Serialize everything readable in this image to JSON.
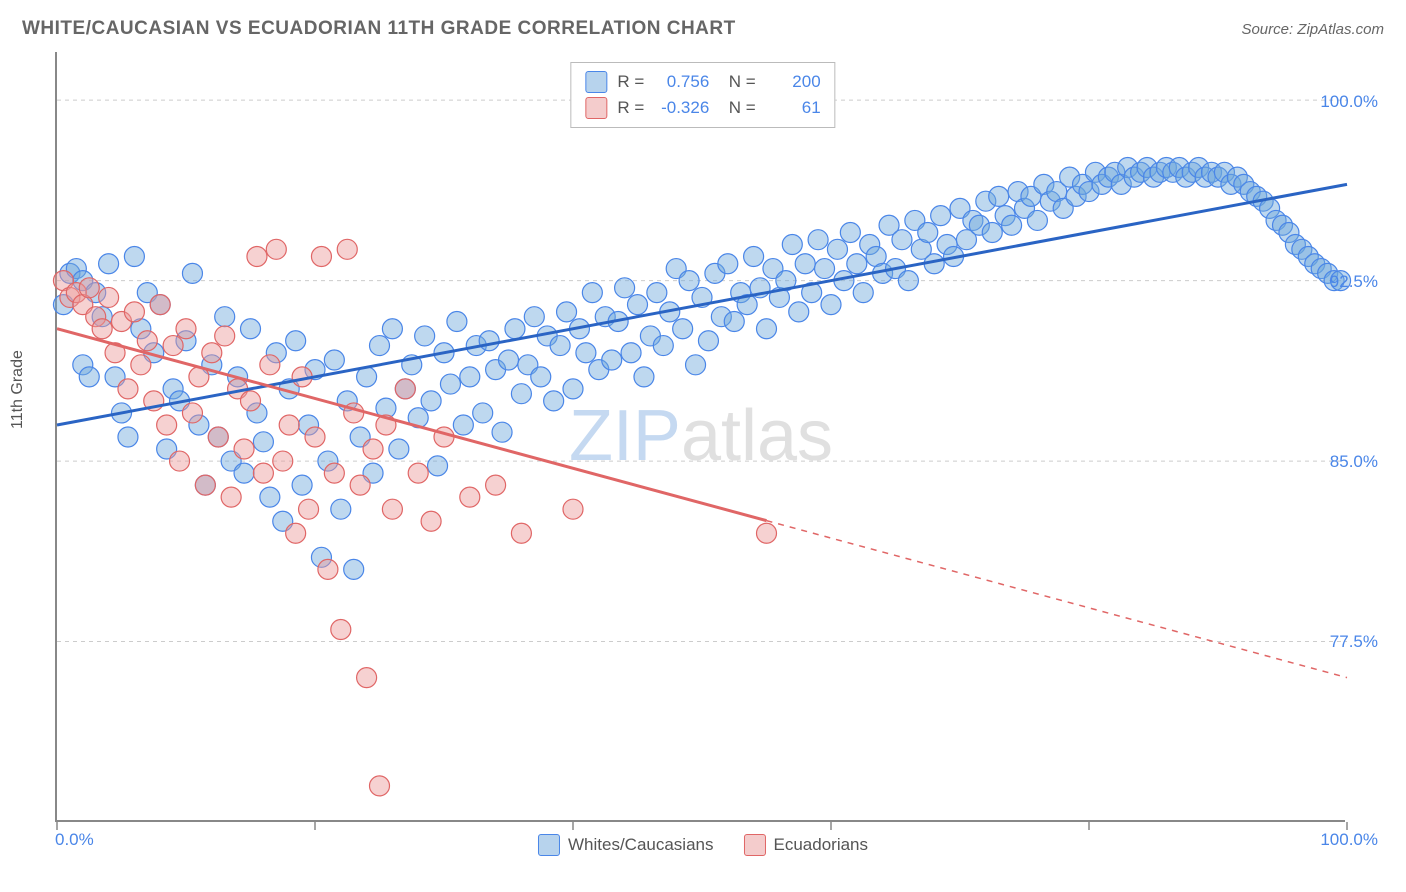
{
  "title": "WHITE/CAUCASIAN VS ECUADORIAN 11TH GRADE CORRELATION CHART",
  "source": "Source: ZipAtlas.com",
  "y_axis_label": "11th Grade",
  "chart": {
    "type": "scatter",
    "xlim": [
      0,
      100
    ],
    "ylim": [
      70,
      102
    ],
    "x_ticks_percent": [
      0,
      20,
      40,
      60,
      80,
      100
    ],
    "y_gridlines": [
      77.5,
      85.0,
      92.5,
      100.0
    ],
    "y_tick_labels": [
      "77.5%",
      "85.0%",
      "92.5%",
      "100.0%"
    ],
    "x_tick_labels": {
      "left": "0.0%",
      "right": "100.0%"
    },
    "background_color": "#ffffff",
    "grid_color": "#cccccc",
    "axis_color": "#888888",
    "label_color": "#555555",
    "value_color": "#4a86e8",
    "series": [
      {
        "name": "Whites/Caucasians",
        "marker_color": "#6fa8dc",
        "marker_fill": "rgba(111,168,220,0.45)",
        "marker_stroke": "#4a86e8",
        "marker_radius": 10,
        "line_color": "#2a64c4",
        "line_width": 3,
        "R": "0.756",
        "N": "200",
        "trend": {
          "x1": 0,
          "y1": 86.5,
          "x2": 100,
          "y2": 96.5
        },
        "points": [
          [
            0.5,
            91.5
          ],
          [
            1,
            92.8
          ],
          [
            1.5,
            93.0
          ],
          [
            2,
            92.5
          ],
          [
            2,
            89.0
          ],
          [
            2.5,
            88.5
          ],
          [
            3,
            92.0
          ],
          [
            3.5,
            91.0
          ],
          [
            4,
            93.2
          ],
          [
            4.5,
            88.5
          ],
          [
            5,
            87.0
          ],
          [
            5.5,
            86.0
          ],
          [
            6,
            93.5
          ],
          [
            6.5,
            90.5
          ],
          [
            7,
            92.0
          ],
          [
            7.5,
            89.5
          ],
          [
            8,
            91.5
          ],
          [
            8.5,
            85.5
          ],
          [
            9,
            88.0
          ],
          [
            9.5,
            87.5
          ],
          [
            10,
            90.0
          ],
          [
            10.5,
            92.8
          ],
          [
            11,
            86.5
          ],
          [
            11.5,
            84.0
          ],
          [
            12,
            89.0
          ],
          [
            12.5,
            86.0
          ],
          [
            13,
            91.0
          ],
          [
            13.5,
            85.0
          ],
          [
            14,
            88.5
          ],
          [
            14.5,
            84.5
          ],
          [
            15,
            90.5
          ],
          [
            15.5,
            87.0
          ],
          [
            16,
            85.8
          ],
          [
            16.5,
            83.5
          ],
          [
            17,
            89.5
          ],
          [
            17.5,
            82.5
          ],
          [
            18,
            88.0
          ],
          [
            18.5,
            90.0
          ],
          [
            19,
            84.0
          ],
          [
            19.5,
            86.5
          ],
          [
            20,
            88.8
          ],
          [
            20.5,
            81.0
          ],
          [
            21,
            85.0
          ],
          [
            21.5,
            89.2
          ],
          [
            22,
            83.0
          ],
          [
            22.5,
            87.5
          ],
          [
            23,
            80.5
          ],
          [
            23.5,
            86.0
          ],
          [
            24,
            88.5
          ],
          [
            24.5,
            84.5
          ],
          [
            25,
            89.8
          ],
          [
            25.5,
            87.2
          ],
          [
            26,
            90.5
          ],
          [
            26.5,
            85.5
          ],
          [
            27,
            88.0
          ],
          [
            27.5,
            89.0
          ],
          [
            28,
            86.8
          ],
          [
            28.5,
            90.2
          ],
          [
            29,
            87.5
          ],
          [
            29.5,
            84.8
          ],
          [
            30,
            89.5
          ],
          [
            30.5,
            88.2
          ],
          [
            31,
            90.8
          ],
          [
            31.5,
            86.5
          ],
          [
            32,
            88.5
          ],
          [
            32.5,
            89.8
          ],
          [
            33,
            87.0
          ],
          [
            33.5,
            90.0
          ],
          [
            34,
            88.8
          ],
          [
            34.5,
            86.2
          ],
          [
            35,
            89.2
          ],
          [
            35.5,
            90.5
          ],
          [
            36,
            87.8
          ],
          [
            36.5,
            89.0
          ],
          [
            37,
            91.0
          ],
          [
            37.5,
            88.5
          ],
          [
            38,
            90.2
          ],
          [
            38.5,
            87.5
          ],
          [
            39,
            89.8
          ],
          [
            39.5,
            91.2
          ],
          [
            40,
            88.0
          ],
          [
            40.5,
            90.5
          ],
          [
            41,
            89.5
          ],
          [
            41.5,
            92.0
          ],
          [
            42,
            88.8
          ],
          [
            42.5,
            91.0
          ],
          [
            43,
            89.2
          ],
          [
            43.5,
            90.8
          ],
          [
            44,
            92.2
          ],
          [
            44.5,
            89.5
          ],
          [
            45,
            91.5
          ],
          [
            45.5,
            88.5
          ],
          [
            46,
            90.2
          ],
          [
            46.5,
            92.0
          ],
          [
            47,
            89.8
          ],
          [
            47.5,
            91.2
          ],
          [
            48,
            93.0
          ],
          [
            48.5,
            90.5
          ],
          [
            49,
            92.5
          ],
          [
            49.5,
            89.0
          ],
          [
            50,
            91.8
          ],
          [
            50.5,
            90.0
          ],
          [
            51,
            92.8
          ],
          [
            51.5,
            91.0
          ],
          [
            52,
            93.2
          ],
          [
            52.5,
            90.8
          ],
          [
            53,
            92.0
          ],
          [
            53.5,
            91.5
          ],
          [
            54,
            93.5
          ],
          [
            54.5,
            92.2
          ],
          [
            55,
            90.5
          ],
          [
            55.5,
            93.0
          ],
          [
            56,
            91.8
          ],
          [
            56.5,
            92.5
          ],
          [
            57,
            94.0
          ],
          [
            57.5,
            91.2
          ],
          [
            58,
            93.2
          ],
          [
            58.5,
            92.0
          ],
          [
            59,
            94.2
          ],
          [
            59.5,
            93.0
          ],
          [
            60,
            91.5
          ],
          [
            60.5,
            93.8
          ],
          [
            61,
            92.5
          ],
          [
            61.5,
            94.5
          ],
          [
            62,
            93.2
          ],
          [
            62.5,
            92.0
          ],
          [
            63,
            94.0
          ],
          [
            63.5,
            93.5
          ],
          [
            64,
            92.8
          ],
          [
            64.5,
            94.8
          ],
          [
            65,
            93.0
          ],
          [
            65.5,
            94.2
          ],
          [
            66,
            92.5
          ],
          [
            66.5,
            95.0
          ],
          [
            67,
            93.8
          ],
          [
            67.5,
            94.5
          ],
          [
            68,
            93.2
          ],
          [
            68.5,
            95.2
          ],
          [
            69,
            94.0
          ],
          [
            69.5,
            93.5
          ],
          [
            70,
            95.5
          ],
          [
            70.5,
            94.2
          ],
          [
            71,
            95.0
          ],
          [
            71.5,
            94.8
          ],
          [
            72,
            95.8
          ],
          [
            72.5,
            94.5
          ],
          [
            73,
            96.0
          ],
          [
            73.5,
            95.2
          ],
          [
            74,
            94.8
          ],
          [
            74.5,
            96.2
          ],
          [
            75,
            95.5
          ],
          [
            75.5,
            96.0
          ],
          [
            76,
            95.0
          ],
          [
            76.5,
            96.5
          ],
          [
            77,
            95.8
          ],
          [
            77.5,
            96.2
          ],
          [
            78,
            95.5
          ],
          [
            78.5,
            96.8
          ],
          [
            79,
            96.0
          ],
          [
            79.5,
            96.5
          ],
          [
            80,
            96.2
          ],
          [
            80.5,
            97.0
          ],
          [
            81,
            96.5
          ],
          [
            81.5,
            96.8
          ],
          [
            82,
            97.0
          ],
          [
            82.5,
            96.5
          ],
          [
            83,
            97.2
          ],
          [
            83.5,
            96.8
          ],
          [
            84,
            97.0
          ],
          [
            84.5,
            97.2
          ],
          [
            85,
            96.8
          ],
          [
            85.5,
            97.0
          ],
          [
            86,
            97.2
          ],
          [
            86.5,
            97.0
          ],
          [
            87,
            97.2
          ],
          [
            87.5,
            96.8
          ],
          [
            88,
            97.0
          ],
          [
            88.5,
            97.2
          ],
          [
            89,
            96.8
          ],
          [
            89.5,
            97.0
          ],
          [
            90,
            96.8
          ],
          [
            90.5,
            97.0
          ],
          [
            91,
            96.5
          ],
          [
            91.5,
            96.8
          ],
          [
            92,
            96.5
          ],
          [
            92.5,
            96.2
          ],
          [
            93,
            96.0
          ],
          [
            93.5,
            95.8
          ],
          [
            94,
            95.5
          ],
          [
            94.5,
            95.0
          ],
          [
            95,
            94.8
          ],
          [
            95.5,
            94.5
          ],
          [
            96,
            94.0
          ],
          [
            96.5,
            93.8
          ],
          [
            97,
            93.5
          ],
          [
            97.5,
            93.2
          ],
          [
            98,
            93.0
          ],
          [
            98.5,
            92.8
          ],
          [
            99,
            92.5
          ],
          [
            99.5,
            92.5
          ]
        ]
      },
      {
        "name": "Ecuadorians",
        "marker_color": "#ea9999",
        "marker_fill": "rgba(234,153,153,0.45)",
        "marker_stroke": "#e06666",
        "marker_radius": 10,
        "line_color": "#e06666",
        "line_width": 3,
        "R": "-0.326",
        "N": "61",
        "trend": {
          "x1": 0,
          "y1": 90.5,
          "x2": 100,
          "y2": 76.0
        },
        "trend_solid_until_x": 55,
        "points": [
          [
            0.5,
            92.5
          ],
          [
            1,
            91.8
          ],
          [
            1.5,
            92.0
          ],
          [
            2,
            91.5
          ],
          [
            2.5,
            92.2
          ],
          [
            3,
            91.0
          ],
          [
            3.5,
            90.5
          ],
          [
            4,
            91.8
          ],
          [
            4.5,
            89.5
          ],
          [
            5,
            90.8
          ],
          [
            5.5,
            88.0
          ],
          [
            6,
            91.2
          ],
          [
            6.5,
            89.0
          ],
          [
            7,
            90.0
          ],
          [
            7.5,
            87.5
          ],
          [
            8,
            91.5
          ],
          [
            8.5,
            86.5
          ],
          [
            9,
            89.8
          ],
          [
            9.5,
            85.0
          ],
          [
            10,
            90.5
          ],
          [
            10.5,
            87.0
          ],
          [
            11,
            88.5
          ],
          [
            11.5,
            84.0
          ],
          [
            12,
            89.5
          ],
          [
            12.5,
            86.0
          ],
          [
            13,
            90.2
          ],
          [
            13.5,
            83.5
          ],
          [
            14,
            88.0
          ],
          [
            14.5,
            85.5
          ],
          [
            15,
            87.5
          ],
          [
            15.5,
            93.5
          ],
          [
            16,
            84.5
          ],
          [
            16.5,
            89.0
          ],
          [
            17,
            93.8
          ],
          [
            17.5,
            85.0
          ],
          [
            18,
            86.5
          ],
          [
            18.5,
            82.0
          ],
          [
            19,
            88.5
          ],
          [
            19.5,
            83.0
          ],
          [
            20,
            86.0
          ],
          [
            20.5,
            93.5
          ],
          [
            21,
            80.5
          ],
          [
            21.5,
            84.5
          ],
          [
            22,
            78.0
          ],
          [
            22.5,
            93.8
          ],
          [
            23,
            87.0
          ],
          [
            23.5,
            84.0
          ],
          [
            24,
            76.0
          ],
          [
            24.5,
            85.5
          ],
          [
            25,
            71.5
          ],
          [
            25.5,
            86.5
          ],
          [
            26,
            83.0
          ],
          [
            27,
            88.0
          ],
          [
            28,
            84.5
          ],
          [
            29,
            82.5
          ],
          [
            30,
            86.0
          ],
          [
            32,
            83.5
          ],
          [
            34,
            84.0
          ],
          [
            36,
            82.0
          ],
          [
            40,
            83.0
          ],
          [
            55,
            82.0
          ]
        ]
      }
    ],
    "legend_swatch_blue": {
      "fill": "rgba(111,168,220,0.5)",
      "border": "#4a86e8"
    },
    "legend_swatch_pink": {
      "fill": "rgba(234,153,153,0.5)",
      "border": "#e06666"
    }
  },
  "watermark": {
    "part1": "ZIP",
    "part2": "atlas"
  },
  "legend_bottom": [
    {
      "label": "Whites/Caucasians",
      "swatch": "blue"
    },
    {
      "label": "Ecuadorians",
      "swatch": "pink"
    }
  ]
}
